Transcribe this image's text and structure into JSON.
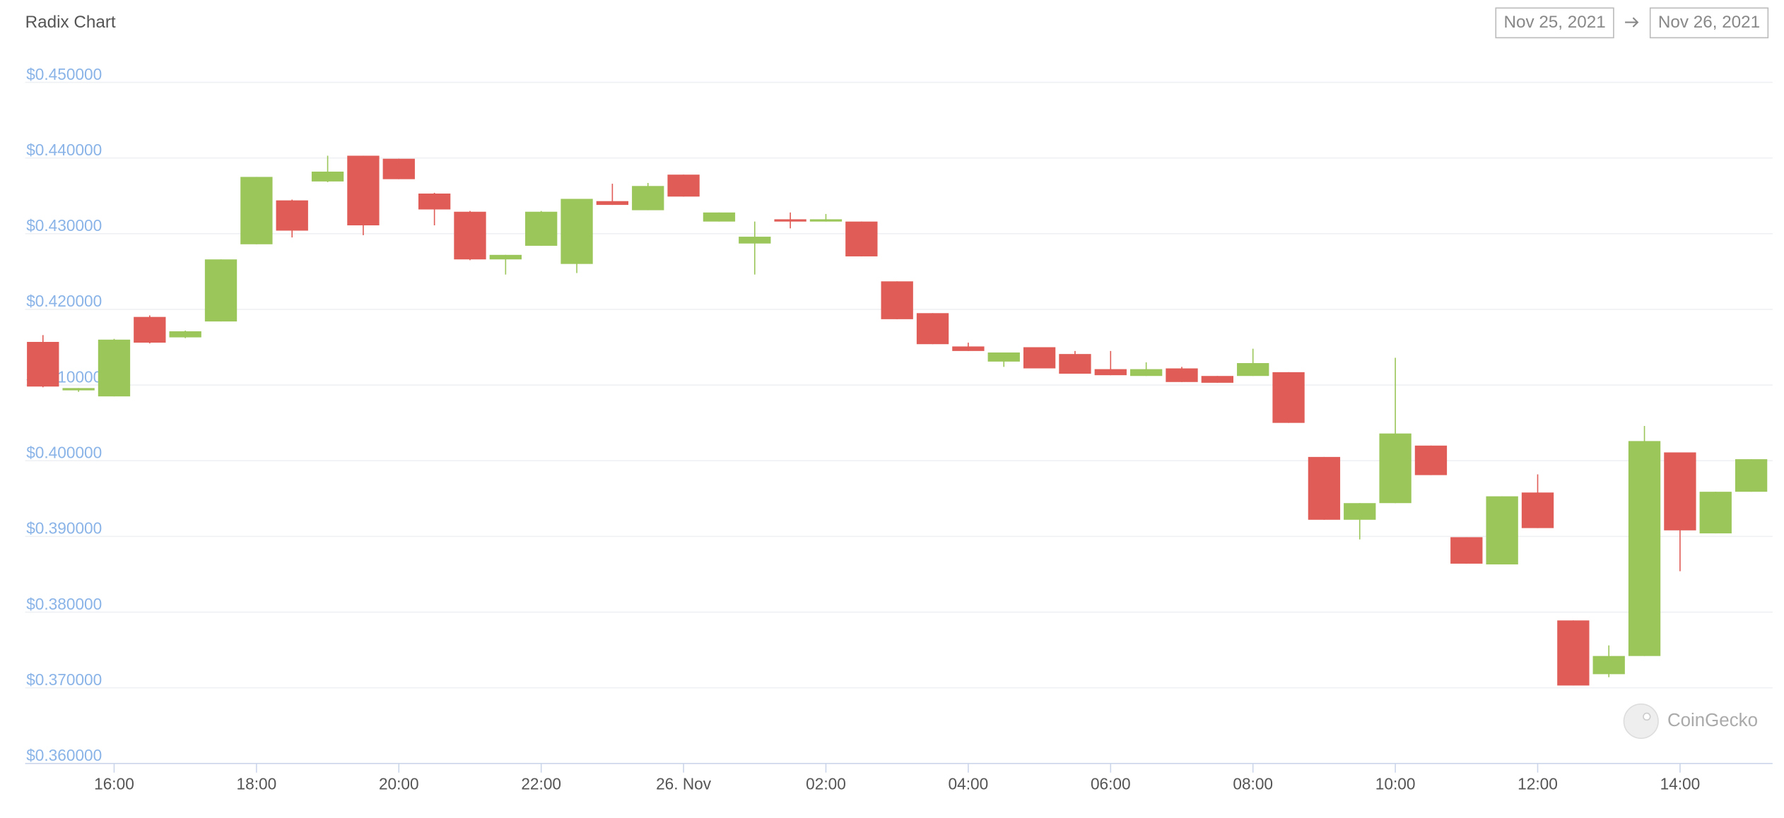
{
  "chart_data": {
    "type": "candlestick",
    "title": "Radix Chart",
    "date_range": {
      "from": "Nov 25, 2021",
      "to": "Nov 26, 2021"
    },
    "watermark": "CoinGecko",
    "up_color": "#9bc65a",
    "down_color": "#e05d57",
    "grid": true,
    "x": [
      "2021-11-25T15:00",
      "2021-11-25T15:30",
      "2021-11-25T16:00",
      "2021-11-25T16:30",
      "2021-11-25T17:00",
      "2021-11-25T17:30",
      "2021-11-25T18:00",
      "2021-11-25T18:30",
      "2021-11-25T19:00",
      "2021-11-25T19:30",
      "2021-11-25T20:00",
      "2021-11-25T20:30",
      "2021-11-25T21:00",
      "2021-11-25T21:30",
      "2021-11-25T22:00",
      "2021-11-25T22:30",
      "2021-11-25T23:00",
      "2021-11-25T23:30",
      "2021-11-26T00:00",
      "2021-11-26T00:30",
      "2021-11-26T01:00",
      "2021-11-26T01:30",
      "2021-11-26T02:00",
      "2021-11-26T02:30",
      "2021-11-26T03:00",
      "2021-11-26T03:30",
      "2021-11-26T04:00",
      "2021-11-26T04:30",
      "2021-11-26T05:00",
      "2021-11-26T05:30",
      "2021-11-26T06:00",
      "2021-11-26T06:30",
      "2021-11-26T07:00",
      "2021-11-26T07:30",
      "2021-11-26T08:00",
      "2021-11-26T08:30",
      "2021-11-26T09:00",
      "2021-11-26T09:30",
      "2021-11-26T10:00",
      "2021-11-26T10:30",
      "2021-11-26T11:00",
      "2021-11-26T11:30",
      "2021-11-26T12:00",
      "2021-11-26T12:30",
      "2021-11-26T13:00",
      "2021-11-26T13:30",
      "2021-11-26T14:00",
      "2021-11-26T14:30",
      "2021-11-26T15:00"
    ],
    "open": [
      0.4157,
      0.4093,
      0.4085,
      0.419,
      0.4163,
      0.4184,
      0.4286,
      0.4344,
      0.4369,
      0.4403,
      0.4399,
      0.4353,
      0.4329,
      0.4266,
      0.4284,
      0.426,
      0.4343,
      0.4331,
      0.4378,
      0.4316,
      0.4287,
      0.4319,
      0.4316,
      0.4316,
      0.4237,
      0.4195,
      0.4151,
      0.4131,
      0.415,
      0.4141,
      0.4121,
      0.4112,
      0.4122,
      0.4112,
      0.4112,
      0.4117,
      0.4005,
      0.3922,
      0.3944,
      0.402,
      0.3899,
      0.3863,
      0.3958,
      0.3789,
      0.3718,
      0.3742,
      0.4011,
      0.3904,
      0.3959
    ],
    "high": [
      0.4166,
      0.4096,
      0.4161,
      0.4192,
      0.4172,
      0.4266,
      0.4375,
      0.4345,
      0.4403,
      0.4403,
      0.4399,
      0.4354,
      0.433,
      0.4272,
      0.433,
      0.4346,
      0.4366,
      0.4367,
      0.4378,
      0.4328,
      0.4316,
      0.4328,
      0.4326,
      0.4316,
      0.4237,
      0.4195,
      0.4156,
      0.4143,
      0.415,
      0.4145,
      0.4145,
      0.413,
      0.4124,
      0.4112,
      0.4148,
      0.4117,
      0.4005,
      0.3944,
      0.4136,
      0.402,
      0.3899,
      0.3953,
      0.3982,
      0.3789,
      0.3756,
      0.4046,
      0.4011,
      0.3959,
      0.4002
    ],
    "low": [
      0.4097,
      0.4091,
      0.4085,
      0.4155,
      0.4162,
      0.4184,
      0.4286,
      0.4295,
      0.4368,
      0.4298,
      0.4372,
      0.4311,
      0.4265,
      0.4246,
      0.4284,
      0.4248,
      0.4338,
      0.4331,
      0.4349,
      0.4316,
      0.4246,
      0.4307,
      0.4316,
      0.427,
      0.4187,
      0.4154,
      0.4145,
      0.4124,
      0.4122,
      0.4115,
      0.4113,
      0.4112,
      0.4104,
      0.4103,
      0.4112,
      0.405,
      0.3922,
      0.3896,
      0.3944,
      0.3981,
      0.3864,
      0.3863,
      0.3911,
      0.3703,
      0.3714,
      0.3742,
      0.3854,
      0.3904,
      0.3959
    ],
    "close": [
      0.4098,
      0.4096,
      0.416,
      0.4156,
      0.4171,
      0.4266,
      0.4375,
      0.4304,
      0.4382,
      0.4311,
      0.4372,
      0.4332,
      0.4266,
      0.4272,
      0.4329,
      0.4346,
      0.4338,
      0.4363,
      0.4349,
      0.4328,
      0.4296,
      0.4316,
      0.4319,
      0.427,
      0.4187,
      0.4154,
      0.4145,
      0.4143,
      0.4122,
      0.4115,
      0.4113,
      0.4121,
      0.4104,
      0.4103,
      0.4129,
      0.405,
      0.3922,
      0.3944,
      0.4036,
      0.3981,
      0.3864,
      0.3953,
      0.3911,
      0.3703,
      0.3742,
      0.4026,
      0.3908,
      0.3959,
      0.4002
    ],
    "xlim": [
      "2021-11-25T14:45",
      "2021-11-26T15:18"
    ],
    "xticks": [
      {
        "value": "2021-11-25T16:00",
        "label": "16:00"
      },
      {
        "value": "2021-11-25T18:00",
        "label": "18:00"
      },
      {
        "value": "2021-11-25T20:00",
        "label": "20:00"
      },
      {
        "value": "2021-11-25T22:00",
        "label": "22:00"
      },
      {
        "value": "2021-11-26T00:00",
        "label": "26. Nov"
      },
      {
        "value": "2021-11-26T02:00",
        "label": "02:00"
      },
      {
        "value": "2021-11-26T04:00",
        "label": "04:00"
      },
      {
        "value": "2021-11-26T06:00",
        "label": "06:00"
      },
      {
        "value": "2021-11-26T08:00",
        "label": "08:00"
      },
      {
        "value": "2021-11-26T10:00",
        "label": "10:00"
      },
      {
        "value": "2021-11-26T12:00",
        "label": "12:00"
      },
      {
        "value": "2021-11-26T14:00",
        "label": "14:00"
      }
    ],
    "ylim": [
      0.36,
      0.45
    ],
    "yticks": [
      {
        "value": 0.45,
        "label": "$0.450000"
      },
      {
        "value": 0.44,
        "label": "$0.440000"
      },
      {
        "value": 0.43,
        "label": "$0.430000"
      },
      {
        "value": 0.42,
        "label": "$0.420000"
      },
      {
        "value": 0.41,
        "label": "$0.410000"
      },
      {
        "value": 0.4,
        "label": "$0.400000"
      },
      {
        "value": 0.39,
        "label": "$0.390000"
      },
      {
        "value": 0.38,
        "label": "$0.380000"
      },
      {
        "value": 0.37,
        "label": "$0.370000"
      },
      {
        "value": 0.36,
        "label": "$0.360000"
      }
    ]
  }
}
